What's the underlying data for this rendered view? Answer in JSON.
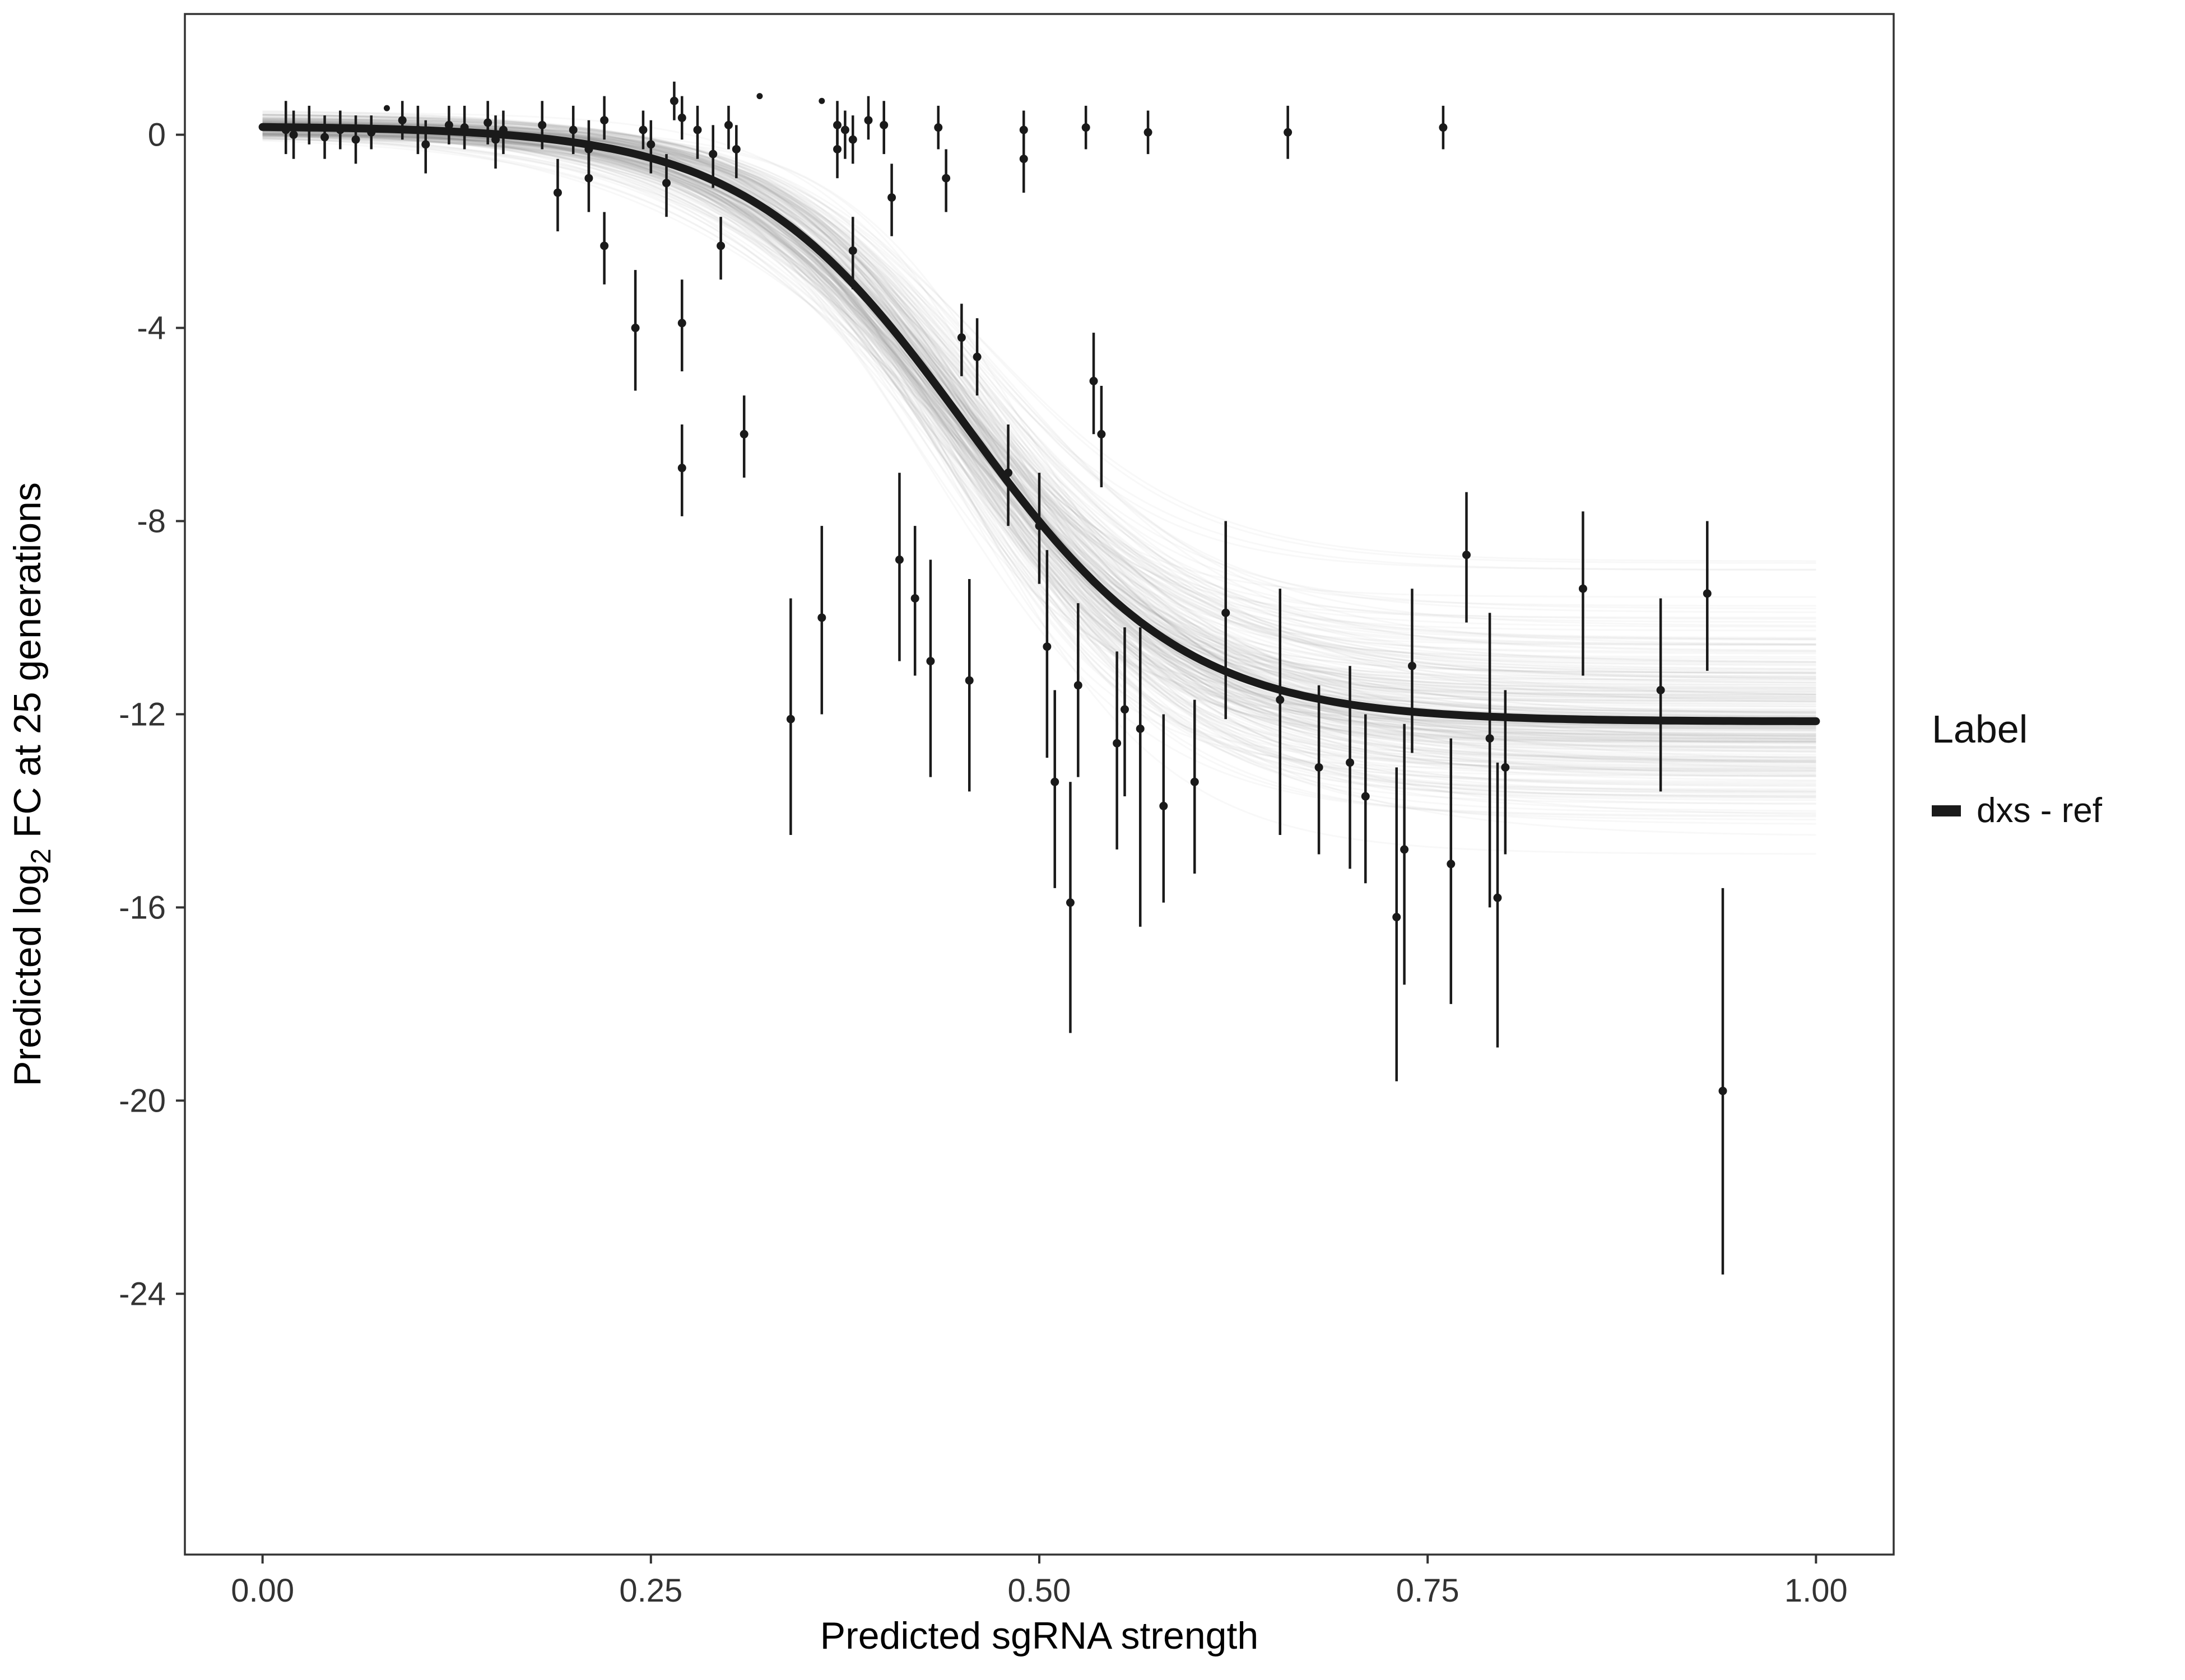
{
  "chart_data": {
    "type": "line",
    "title": "",
    "xlabel": "Predicted sgRNA strength",
    "ylabel_parts": {
      "pre": "Predicted  log",
      "sub": "2",
      "post": " FC at 25 generations"
    },
    "x_ticks": [
      "0.00",
      "0.25",
      "0.50",
      "0.75",
      "1.00"
    ],
    "x_tick_values": [
      0,
      0.25,
      0.5,
      0.75,
      1
    ],
    "y_ticks": [
      "0",
      "-4",
      "-8",
      "-12",
      "-16",
      "-20",
      "-24"
    ],
    "y_tick_values": [
      0,
      -4,
      -8,
      -12,
      -16,
      -20,
      -24
    ],
    "xlim": [
      -0.05,
      1.05
    ],
    "ylim": [
      -29.4,
      2.5
    ],
    "grid": false,
    "legend_position": "right",
    "legend": {
      "title": "Label",
      "items": [
        {
          "label": "dxs - ref",
          "color": "#1a1a1a"
        }
      ]
    },
    "fit_curve": {
      "model": "logistic",
      "upper": 0.18,
      "lower": -12.15,
      "midpoint": 0.452,
      "slope": 14.2,
      "color": "#1a1a1a",
      "width": 14
    },
    "ensemble": {
      "n": 250,
      "seed": 11,
      "sd_upper": 0.12,
      "sd_lower": 1.05,
      "sd_midpoint": 0.013,
      "sd_slope": 1.6,
      "color": "#808080",
      "opacity": 0.055,
      "width": 3
    },
    "point_color": "#1a1a1a",
    "points": [
      [
        0.015,
        0.1,
        -0.4,
        0.7
      ],
      [
        0.02,
        0.0,
        -0.5,
        0.5
      ],
      [
        0.03,
        0.15,
        -0.2,
        0.6
      ],
      [
        0.04,
        -0.05,
        -0.5,
        0.4
      ],
      [
        0.05,
        0.1,
        -0.3,
        0.5
      ],
      [
        0.06,
        -0.1,
        -0.6,
        0.4
      ],
      [
        0.07,
        0.05,
        -0.3,
        0.4
      ],
      [
        0.08,
        0.55,
        0.55,
        0.55
      ],
      [
        0.09,
        0.3,
        -0.1,
        0.7
      ],
      [
        0.1,
        0.1,
        -0.4,
        0.6
      ],
      [
        0.105,
        -0.2,
        -0.8,
        0.3
      ],
      [
        0.12,
        0.2,
        -0.2,
        0.6
      ],
      [
        0.13,
        0.15,
        -0.3,
        0.6
      ],
      [
        0.145,
        0.25,
        -0.2,
        0.7
      ],
      [
        0.15,
        -0.1,
        -0.7,
        0.4
      ],
      [
        0.155,
        0.1,
        -0.4,
        0.5
      ],
      [
        0.18,
        0.2,
        -0.3,
        0.7
      ],
      [
        0.19,
        -1.2,
        -2.0,
        -0.5
      ],
      [
        0.2,
        0.1,
        -0.4,
        0.6
      ],
      [
        0.21,
        -0.3,
        -1.0,
        0.3
      ],
      [
        0.21,
        -0.9,
        -1.6,
        -0.3
      ],
      [
        0.22,
        0.3,
        -0.1,
        0.8
      ],
      [
        0.22,
        -2.3,
        -3.1,
        -1.6
      ],
      [
        0.24,
        -4.0,
        -5.3,
        -2.8
      ],
      [
        0.245,
        0.1,
        -0.3,
        0.5
      ],
      [
        0.25,
        -0.2,
        -0.8,
        0.3
      ],
      [
        0.26,
        -1.0,
        -1.7,
        -0.4
      ],
      [
        0.265,
        0.7,
        0.3,
        1.1
      ],
      [
        0.27,
        0.35,
        -0.1,
        0.8
      ],
      [
        0.27,
        -3.9,
        -4.9,
        -3.0
      ],
      [
        0.27,
        -6.9,
        -7.9,
        -6.0
      ],
      [
        0.28,
        0.1,
        -0.5,
        0.6
      ],
      [
        0.29,
        -0.4,
        -1.1,
        0.2
      ],
      [
        0.295,
        -2.3,
        -3.0,
        -1.7
      ],
      [
        0.3,
        0.2,
        -0.3,
        0.6
      ],
      [
        0.305,
        -0.3,
        -0.9,
        0.2
      ],
      [
        0.31,
        -6.2,
        -7.1,
        -5.4
      ],
      [
        0.32,
        0.8,
        0.8,
        0.8
      ],
      [
        0.34,
        -12.1,
        -14.5,
        -9.6
      ],
      [
        0.36,
        0.7,
        0.7,
        0.7
      ],
      [
        0.36,
        -10.0,
        -12.0,
        -8.1
      ],
      [
        0.37,
        0.2,
        -0.2,
        0.7
      ],
      [
        0.37,
        -0.3,
        -0.9,
        0.2
      ],
      [
        0.375,
        0.1,
        -0.5,
        0.5
      ],
      [
        0.38,
        -0.1,
        -0.6,
        0.4
      ],
      [
        0.38,
        -2.4,
        -3.2,
        -1.7
      ],
      [
        0.39,
        0.3,
        -0.1,
        0.8
      ],
      [
        0.4,
        0.2,
        -0.4,
        0.7
      ],
      [
        0.405,
        -1.3,
        -2.1,
        -0.6
      ],
      [
        0.41,
        -8.8,
        -10.9,
        -7.0
      ],
      [
        0.42,
        -9.6,
        -11.2,
        -8.1
      ],
      [
        0.43,
        -10.9,
        -13.3,
        -8.8
      ],
      [
        0.435,
        0.15,
        -0.3,
        0.6
      ],
      [
        0.44,
        -0.9,
        -1.6,
        -0.3
      ],
      [
        0.45,
        -4.2,
        -5.0,
        -3.5
      ],
      [
        0.455,
        -11.3,
        -13.6,
        -9.2
      ],
      [
        0.46,
        -4.6,
        -5.4,
        -3.8
      ],
      [
        0.48,
        -7.0,
        -8.1,
        -6.0
      ],
      [
        0.49,
        -0.5,
        -1.2,
        0.1
      ],
      [
        0.49,
        0.1,
        -0.3,
        0.5
      ],
      [
        0.5,
        -8.1,
        -9.3,
        -7.0
      ],
      [
        0.505,
        -10.6,
        -12.9,
        -8.6
      ],
      [
        0.51,
        -13.4,
        -15.6,
        -11.5
      ],
      [
        0.52,
        -15.9,
        -18.6,
        -13.4
      ],
      [
        0.525,
        -11.4,
        -13.3,
        -9.7
      ],
      [
        0.53,
        0.15,
        -0.3,
        0.6
      ],
      [
        0.535,
        -5.1,
        -6.2,
        -4.1
      ],
      [
        0.54,
        -6.2,
        -7.3,
        -5.2
      ],
      [
        0.55,
        -12.6,
        -14.8,
        -10.7
      ],
      [
        0.555,
        -11.9,
        -13.7,
        -10.2
      ],
      [
        0.565,
        -12.3,
        -16.4,
        -10.2
      ],
      [
        0.57,
        0.05,
        -0.4,
        0.5
      ],
      [
        0.58,
        -13.9,
        -15.9,
        -12.0
      ],
      [
        0.6,
        -13.4,
        -15.3,
        -11.7
      ],
      [
        0.62,
        -9.9,
        -12.1,
        -8.0
      ],
      [
        0.655,
        -11.7,
        -14.5,
        -9.4
      ],
      [
        0.66,
        0.05,
        -0.5,
        0.6
      ],
      [
        0.68,
        -13.1,
        -14.9,
        -11.4
      ],
      [
        0.7,
        -13.0,
        -15.2,
        -11.0
      ],
      [
        0.71,
        -13.7,
        -15.5,
        -12.0
      ],
      [
        0.73,
        -16.2,
        -19.6,
        -13.1
      ],
      [
        0.735,
        -14.8,
        -17.6,
        -12.2
      ],
      [
        0.74,
        -11.0,
        -12.8,
        -9.4
      ],
      [
        0.76,
        0.15,
        -0.3,
        0.6
      ],
      [
        0.765,
        -15.1,
        -18.0,
        -12.5
      ],
      [
        0.775,
        -8.7,
        -10.1,
        -7.4
      ],
      [
        0.79,
        -12.5,
        -16.0,
        -9.9
      ],
      [
        0.795,
        -15.8,
        -18.9,
        -13.0
      ],
      [
        0.8,
        -13.1,
        -14.9,
        -11.5
      ],
      [
        0.85,
        -9.4,
        -11.2,
        -7.8
      ],
      [
        0.9,
        -11.5,
        -13.6,
        -9.6
      ],
      [
        0.93,
        -9.5,
        -11.1,
        -8.0
      ],
      [
        0.94,
        -19.8,
        -23.6,
        -15.6
      ]
    ]
  }
}
